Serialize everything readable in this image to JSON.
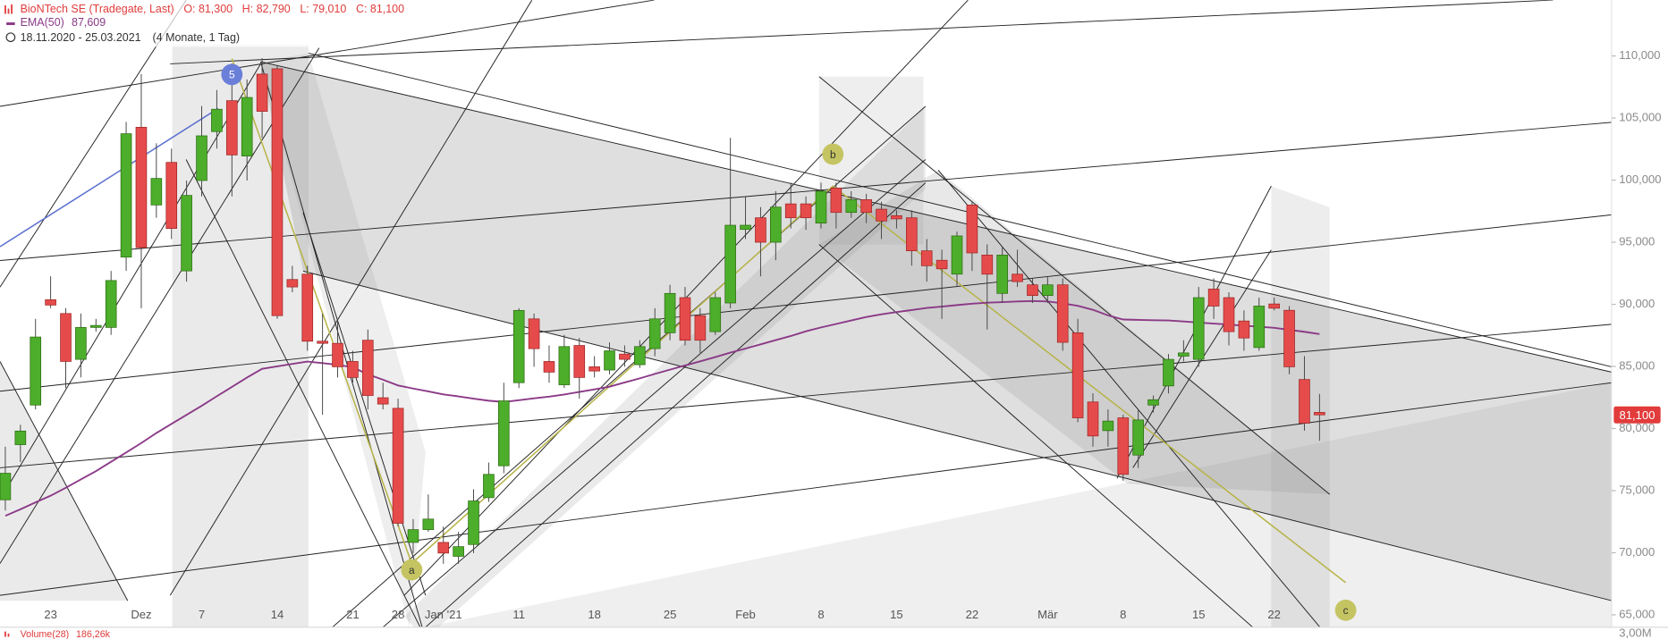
{
  "chart_data": {
    "type": "candlestick",
    "title": "BioNTech SE (Tradegate, Last)",
    "ohlc_labels": [
      "O: 81,300",
      "H: 82,790",
      "L: 79,010",
      "C: 81,100"
    ],
    "date_range": "18.11.2020 - 25.03.2021",
    "period": "(4 Monate, 1 Tag)",
    "categories": [
      null,
      null,
      null,
      "23",
      null,
      null,
      null,
      null,
      null,
      "Dez",
      null,
      null,
      null,
      "7",
      null,
      null,
      null,
      null,
      "14",
      null,
      null,
      null,
      null,
      "21",
      null,
      null,
      "28",
      null,
      null,
      "Jan '21",
      null,
      null,
      null,
      null,
      "11",
      null,
      null,
      null,
      null,
      "18",
      null,
      null,
      null,
      null,
      "25",
      null,
      null,
      null,
      null,
      "Feb",
      null,
      null,
      null,
      null,
      "8",
      null,
      null,
      null,
      null,
      "15",
      null,
      null,
      null,
      null,
      "22",
      null,
      null,
      null,
      null,
      "Mär",
      null,
      null,
      null,
      null,
      "8",
      null,
      null,
      null,
      null,
      "15",
      null,
      null,
      null,
      null,
      "22",
      null,
      null,
      null
    ],
    "open": [
      74260,
      78700,
      81890,
      90370,
      89260,
      85570,
      88140,
      88140,
      93800,
      104260,
      98000,
      101430,
      92690,
      99970,
      103910,
      106400,
      101940,
      108540,
      108970,
      92000,
      92430,
      87030,
      86860,
      85400,
      87110,
      82480,
      81630,
      70830,
      71860,
      70830,
      69710,
      70660,
      74430,
      77000,
      83690,
      88830,
      85400,
      83520,
      86690,
      84970,
      84710,
      86000,
      85140,
      86430,
      87710,
      90540,
      89090,
      87800,
      90110,
      96030,
      96970,
      95000,
      98090,
      98090,
      96540,
      99370,
      97400,
      98430,
      97660,
      97140,
      96970,
      94310,
      93550,
      92430,
      98000,
      93970,
      90880,
      92430,
      91570,
      90710,
      91570,
      87710,
      82140,
      79830,
      80860,
      77860,
      81890,
      83430,
      85830,
      85570,
      91230,
      90540,
      88660,
      86520,
      90030,
      89520,
      83950,
      81300
    ],
    "high": [
      78540,
      80300,
      88830,
      92260,
      89700,
      89260,
      88830,
      92690,
      104690,
      108540,
      102970,
      102540,
      99970,
      105970,
      107260,
      109400,
      108110,
      109830,
      109230,
      93100,
      93110,
      89260,
      88830,
      86260,
      87970,
      83690,
      82400,
      72710,
      74690,
      72110,
      71690,
      75110,
      77260,
      83690,
      89690,
      89260,
      86690,
      87540,
      87290,
      85830,
      86940,
      86690,
      87110,
      89690,
      91570,
      91400,
      89690,
      90970,
      103400,
      98690,
      97830,
      99110,
      99800,
      98690,
      99800,
      99800,
      99110,
      98900,
      98260,
      97570,
      97570,
      95260,
      94400,
      95860,
      98260,
      94830,
      94660,
      94400,
      92090,
      92260,
      92090,
      88830,
      82830,
      81540,
      81110,
      81540,
      82660,
      86000,
      87110,
      91400,
      92090,
      90970,
      89520,
      90540,
      90540,
      89860,
      85830,
      82790
    ],
    "low": [
      73400,
      77300,
      81540,
      89700,
      83260,
      84120,
      87800,
      87540,
      92690,
      89690,
      96970,
      95260,
      91830,
      98690,
      102540,
      98690,
      99970,
      103400,
      88830,
      90970,
      86260,
      81110,
      84110,
      83700,
      81540,
      81540,
      72110,
      69970,
      71690,
      69110,
      69110,
      69970,
      74090,
      76400,
      83260,
      84970,
      83690,
      83260,
      82400,
      84110,
      84370,
      84970,
      84880,
      85830,
      87110,
      86690,
      86090,
      87540,
      89690,
      95260,
      92260,
      93550,
      96110,
      96000,
      96110,
      96110,
      96970,
      96540,
      95260,
      96110,
      93110,
      91830,
      88830,
      91400,
      92690,
      87970,
      90110,
      91400,
      90110,
      90110,
      86260,
      80510,
      78540,
      78540,
      75800,
      76830,
      81290,
      82830,
      85400,
      84970,
      88830,
      86690,
      86260,
      86260,
      89520,
      84370,
      79830,
      79010
    ],
    "close": [
      76400,
      79800,
      87370,
      89940,
      85400,
      88140,
      88300,
      91920,
      103740,
      94570,
      100140,
      96110,
      98770,
      103570,
      105710,
      102030,
      106660,
      105540,
      89090,
      91400,
      87030,
      86860,
      84970,
      84110,
      82660,
      81970,
      72370,
      71860,
      72710,
      69970,
      70490,
      74170,
      76310,
      82230,
      89510,
      86430,
      84540,
      86600,
      84110,
      84630,
      86260,
      85570,
      86600,
      88830,
      90880,
      87110,
      87110,
      90540,
      96370,
      96370,
      95000,
      97830,
      96970,
      96970,
      99110,
      97400,
      98430,
      97400,
      96710,
      96880,
      94310,
      93110,
      92860,
      95510,
      94140,
      92430,
      93970,
      91830,
      90710,
      91570,
      86940,
      80860,
      79400,
      80600,
      76310,
      80690,
      82320,
      85570,
      86090,
      90540,
      89860,
      87800,
      87290,
      89860,
      89690,
      84970,
      80430,
      81100
    ],
    "close_label": "81,100",
    "up_color": "#4cae2a",
    "down_color": "#e64b4b",
    "ema": {
      "name": "EMA(50)",
      "value_label": "87,609",
      "color": "#8b3a87",
      "values": [
        72970,
        73500,
        74050,
        74590,
        75230,
        75900,
        76570,
        77320,
        78070,
        78830,
        79640,
        80370,
        81100,
        81830,
        82600,
        83350,
        84110,
        84810,
        85010,
        85200,
        85390,
        85270,
        85130,
        84930,
        84360,
        83930,
        83470,
        83220,
        82990,
        82750,
        82590,
        82410,
        82240,
        82140,
        82280,
        82430,
        82570,
        82740,
        82950,
        83150,
        83370,
        83710,
        84040,
        84400,
        84740,
        85080,
        85410,
        85750,
        86110,
        86440,
        86780,
        87120,
        87450,
        87830,
        88140,
        88420,
        88700,
        88980,
        89200,
        89380,
        89540,
        89710,
        89820,
        89940,
        90050,
        90130,
        90180,
        90230,
        90270,
        90230,
        90080,
        89880,
        89560,
        89110,
        88780,
        88750,
        88720,
        88700,
        88620,
        88530,
        88450,
        88370,
        88280,
        88200,
        88110,
        87950,
        87790,
        87609
      ]
    },
    "ylim": [
      64000,
      114500
    ],
    "yticks": [
      {
        "value": 65000,
        "label": "65,000"
      },
      {
        "value": 70000,
        "label": "70,000"
      },
      {
        "value": 75000,
        "label": "75,000"
      },
      {
        "value": 80000,
        "label": "80,000"
      },
      {
        "value": 85000,
        "label": "85,000"
      },
      {
        "value": 90000,
        "label": "90,000"
      },
      {
        "value": 95000,
        "label": "95,000"
      },
      {
        "value": 100000,
        "label": "100,000"
      },
      {
        "value": 105000,
        "label": "105,000"
      },
      {
        "value": 110000,
        "label": "110,000"
      }
    ],
    "annotations": [
      "5",
      "a",
      "b",
      "c"
    ],
    "volume": {
      "label": "Volume(28)",
      "value_label": "186,26k",
      "ytick_label": "3,00M"
    }
  }
}
